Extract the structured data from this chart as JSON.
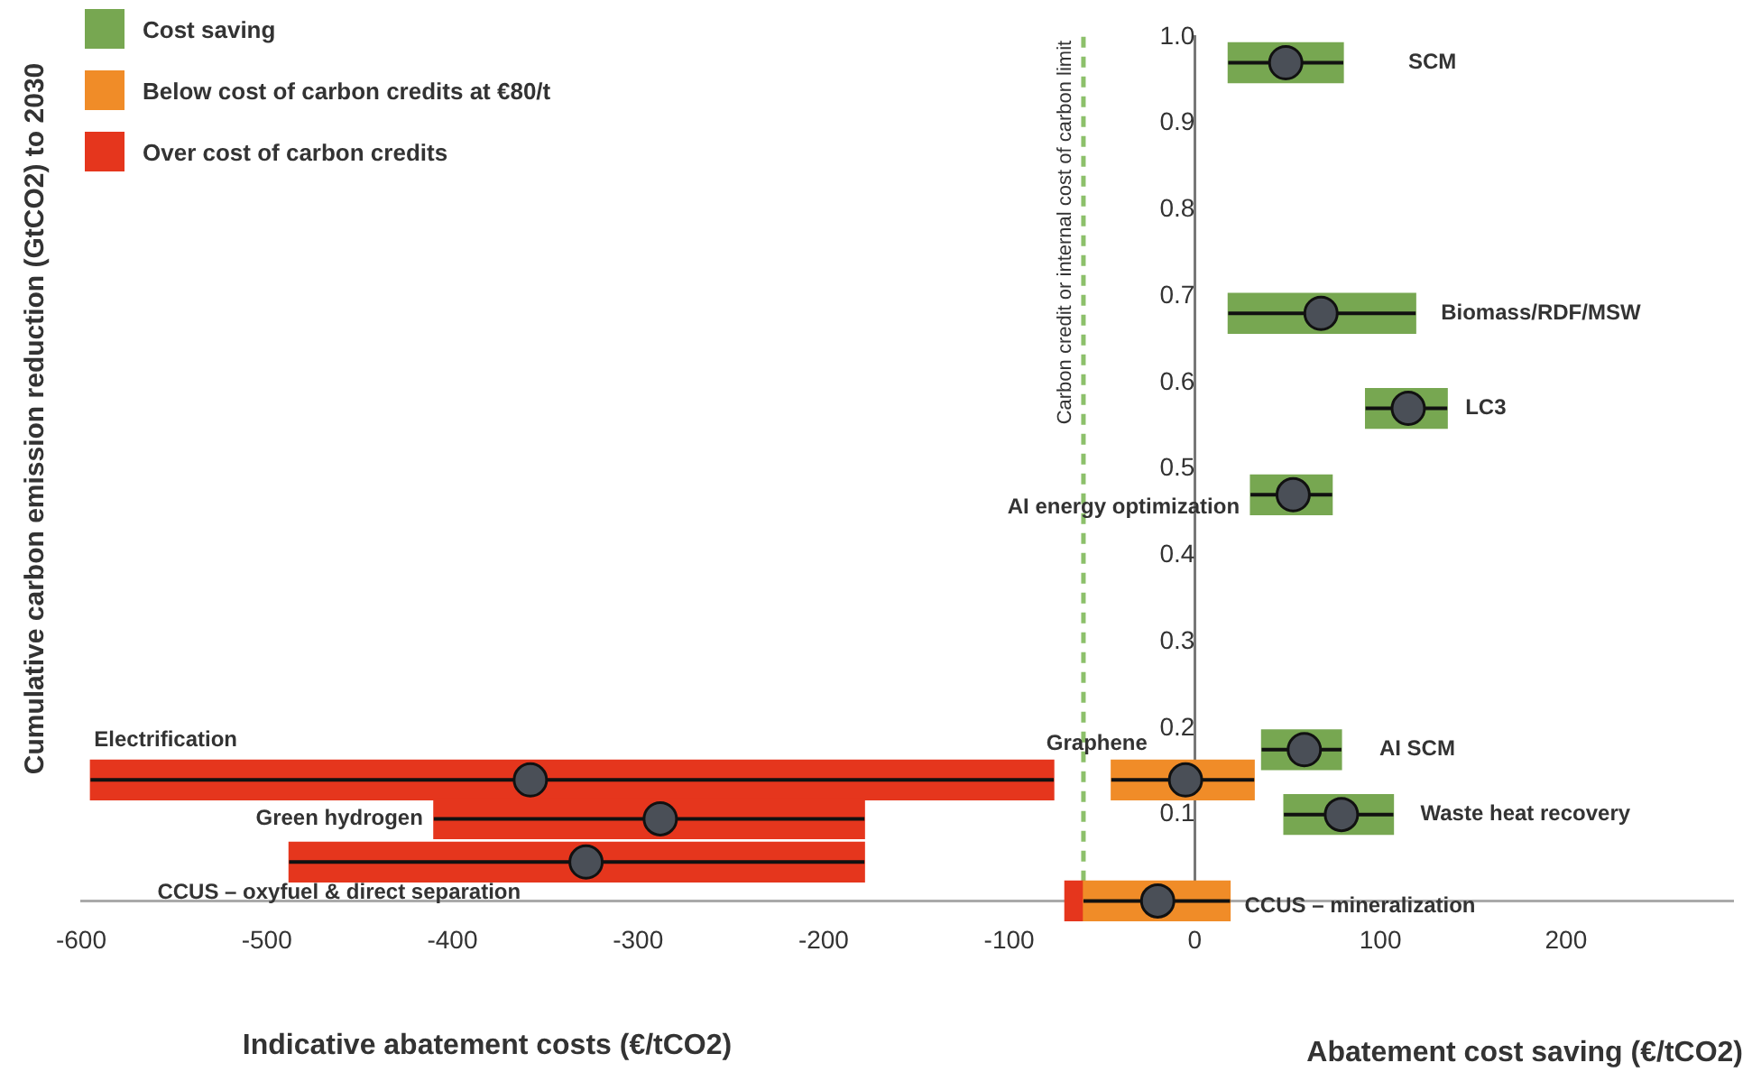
{
  "chart_data": {
    "type": "bar",
    "orientation": "horizontal",
    "xlabel": "Indicative abatement costs (€/tCO2)",
    "ylabel": "Cumulative carbon emission reduction (GtCO2) to 2030",
    "xlim": [
      -600,
      290
    ],
    "xticks": [
      -600,
      -500,
      -400,
      -300,
      -200,
      -100,
      0,
      100,
      200
    ],
    "ylim": [
      0,
      1
    ],
    "yticks": [
      0.1,
      0.2,
      0.3,
      0.4,
      0.5,
      0.6,
      0.7,
      0.8,
      0.9,
      {
        "value": 1,
        "label": "1.0"
      }
    ],
    "grid": false,
    "legend": "top left",
    "series": [
      {
        "name": "Cost saving",
        "color": "#77a751",
        "x": [
          0.97,
          0.68,
          0.57,
          0.47,
          0.175,
          0.1
        ],
        "base": [
          18,
          18,
          92,
          30,
          36,
          48
        ],
        "values": [
          62,
          101,
          44,
          44,
          43,
          59
        ]
      },
      {
        "name": "Below cost of carbon credits at €80/t",
        "color": "#f08c28",
        "x": [
          0.14,
          0
        ],
        "base": [
          -45,
          -60
        ],
        "values": [
          77,
          79
        ]
      },
      {
        "name": "Over cost of carbon credits",
        "color": "#e5361d",
        "x": [
          0.14,
          0.095,
          0.045,
          0
        ],
        "base": [
          -595,
          -410,
          -488,
          -70
        ],
        "values": [
          519,
          232,
          310,
          10
        ]
      },
      {
        "type": "scatter",
        "color": "#4a4f57",
        "marker": "circle",
        "x": [
          0.97,
          0.68,
          0.57,
          0.47,
          0.175,
          0.1,
          0.14,
          0,
          0.14,
          0.095,
          0.045
        ],
        "values": [
          49,
          68,
          115,
          53,
          59,
          79,
          -5,
          -20,
          -358,
          -288,
          -328
        ],
        "errors": [
          [
            18,
            80
          ],
          [
            18,
            119
          ],
          [
            92,
            136
          ],
          [
            30,
            74
          ],
          [
            36,
            79
          ],
          [
            48,
            107
          ],
          [
            -45,
            32
          ],
          [
            -60,
            19
          ],
          [
            -595,
            -76
          ],
          [
            -410,
            -178
          ],
          [
            -488,
            -178
          ]
        ]
      }
    ],
    "ref_lines": [
      {
        "axis": "x",
        "value": -60,
        "label": "Carbon credit or internal cost of carbon limit",
        "color": "#8cc06a",
        "line_style": "dashed"
      }
    ],
    "annotations": [
      {
        "text": "SCM",
        "x": 80,
        "y": 0.97
      },
      {
        "text": "Biomass/RDF/MSW",
        "x": 119,
        "y": 0.68
      },
      {
        "text": "LC3",
        "x": 136,
        "y": 0.57
      },
      {
        "text": "AI energy optimization",
        "x": 30,
        "y": 0.47
      },
      {
        "text": "AI SCM",
        "x": 79,
        "y": 0.175
      },
      {
        "text": "Waste heat recovery",
        "x": 107,
        "y": 0.1
      },
      {
        "text": "Graphene",
        "x": -45,
        "y": 0.14
      },
      {
        "text": "CCUS – mineralization",
        "x": 19,
        "y": 0
      },
      {
        "text": "Electrification",
        "x": -595,
        "y": 0.14
      },
      {
        "text": "Green hydrogen",
        "x": -410,
        "y": 0.095
      },
      {
        "text": "CCUS – oxyfuel & direct separation",
        "x": -488,
        "y": 0.045
      },
      "Abatement cost saving (€/tCO2)"
    ]
  }
}
